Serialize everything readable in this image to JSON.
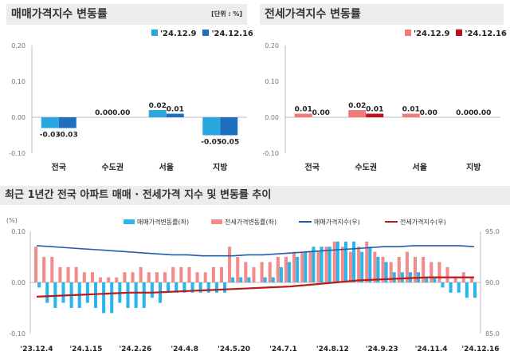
{
  "chart_data": [
    {
      "type": "bar",
      "title": "매매가격지수 변동률",
      "unit": "[단위 : %]",
      "categories": [
        "전국",
        "수도권",
        "서울",
        "지방"
      ],
      "series": [
        {
          "name": "'24.12.9",
          "values": [
            -0.03,
            0.0,
            0.02,
            -0.05
          ],
          "color": "#29a8e0"
        },
        {
          "name": "'24.12.16",
          "values": [
            -0.03,
            0.0,
            0.01,
            -0.05
          ],
          "color": "#1f6fbf"
        }
      ],
      "ylim": [
        -0.1,
        0.2
      ],
      "yticks": [
        "0.20",
        "0.10",
        "0.00",
        "-0.10"
      ]
    },
    {
      "type": "bar",
      "title": "전세가격지수 변동률",
      "categories": [
        "전국",
        "수도권",
        "서울",
        "지방"
      ],
      "series": [
        {
          "name": "'24.12.9",
          "values": [
            0.01,
            0.02,
            0.01,
            0.0
          ],
          "color": "#f07b7b"
        },
        {
          "name": "'24.12.16",
          "values": [
            0.0,
            0.01,
            0.0,
            0.0
          ],
          "color": "#c0101a"
        }
      ],
      "ylim": [
        -0.1,
        0.2
      ],
      "yticks": [
        "0.20",
        "0.10",
        "0.00",
        "-0.10"
      ]
    },
    {
      "type": "bar+line",
      "title": "최근 1년간 전국 아파트 매매 · 전세가격 지수 및 변동률 추이",
      "ylabel_left": "(%)",
      "yticks_left": [
        "0.10",
        "0.00",
        "-0.10"
      ],
      "yticks_right": [
        "95.0",
        "90.0",
        "85.0"
      ],
      "ylim_left": [
        -0.1,
        0.1
      ],
      "ylim_right": [
        85,
        95
      ],
      "xticks": [
        "'23.12.4",
        "'24.1.15",
        "'24.2.26",
        "'24.4.8",
        "'24.5.20",
        "'24.7.1",
        "'24.8.12",
        "'24.9.23",
        "'24.11.4",
        "'24.12.16"
      ],
      "series": [
        {
          "name": "매매가격변동률(좌)",
          "type": "bar",
          "color": "#29b6ea",
          "values": [
            -0.01,
            -0.04,
            -0.05,
            -0.04,
            -0.05,
            -0.05,
            -0.04,
            -0.05,
            -0.06,
            -0.06,
            -0.04,
            -0.05,
            -0.05,
            -0.05,
            -0.03,
            -0.04,
            -0.02,
            -0.02,
            -0.02,
            -0.02,
            -0.02,
            -0.02,
            -0.02,
            -0.02,
            0.01,
            0.01,
            0.01,
            0.0,
            0.01,
            0.01,
            0.03,
            0.04,
            0.05,
            0.06,
            0.07,
            0.07,
            0.07,
            0.08,
            0.08,
            0.08,
            0.06,
            0.07,
            0.05,
            0.04,
            0.02,
            0.02,
            0.02,
            0.02,
            0.01,
            0.01,
            -0.01,
            -0.02,
            -0.02,
            -0.03,
            -0.03
          ]
        },
        {
          "name": "전세가격변동률(좌)",
          "type": "bar",
          "color": "#f28b8b",
          "values": [
            0.07,
            0.05,
            0.05,
            0.03,
            0.03,
            0.03,
            0.02,
            0.02,
            0.01,
            0.01,
            0.01,
            0.02,
            0.02,
            0.03,
            0.02,
            0.02,
            0.02,
            0.03,
            0.03,
            0.03,
            0.02,
            0.02,
            0.03,
            0.03,
            0.07,
            0.05,
            0.04,
            0.03,
            0.04,
            0.04,
            0.05,
            0.05,
            0.06,
            0.06,
            0.06,
            0.06,
            0.07,
            0.08,
            0.07,
            0.06,
            0.07,
            0.08,
            0.06,
            0.05,
            0.04,
            0.05,
            0.06,
            0.05,
            0.05,
            0.04,
            0.04,
            0.03,
            0.01,
            0.02,
            0.01
          ]
        },
        {
          "name": "매매가격지수(우)",
          "type": "line",
          "color": "#1f5fa8",
          "values": [
            93.6,
            93.5,
            93.4,
            93.3,
            93.2,
            93.1,
            93.0,
            92.9,
            92.8,
            92.7,
            92.7,
            92.6,
            92.6,
            92.6,
            92.7,
            92.7,
            92.8,
            92.9,
            93.0,
            93.1,
            93.2,
            93.3,
            93.4,
            93.5,
            93.5,
            93.6,
            93.6,
            93.6,
            93.6,
            93.5
          ]
        },
        {
          "name": "전세가격지수(우)",
          "type": "line",
          "color": "#b81c1c",
          "values": [
            88.6,
            88.7,
            88.8,
            88.9,
            89.0,
            89.0,
            89.1,
            89.2,
            89.3,
            89.4,
            89.5,
            89.6,
            89.8,
            90.0,
            90.2,
            90.3,
            90.4,
            90.5,
            90.5,
            90.5
          ]
        }
      ]
    }
  ]
}
